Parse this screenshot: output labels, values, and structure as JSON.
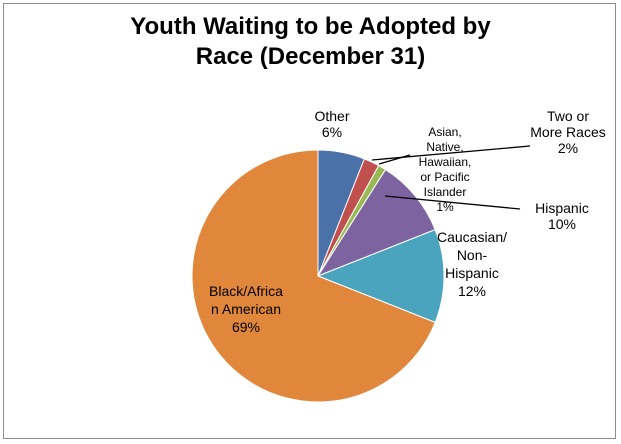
{
  "chart_data": {
    "type": "pie",
    "title_lines": [
      "Youth Waiting to be Adopted by",
      "Race (December 31)"
    ],
    "slices": [
      {
        "label_lines": [
          "Other",
          "6%"
        ],
        "value": 6,
        "color": "#4a72a8"
      },
      {
        "label_lines": [
          "Two or",
          "More Races",
          "2%"
        ],
        "value": 2,
        "color": "#c0504d"
      },
      {
        "label_lines": [
          "Asian,",
          "Native,",
          "Hawaiian,",
          "or Pacific",
          "Islander",
          "1%"
        ],
        "value": 1,
        "color": "#98b954"
      },
      {
        "label_lines": [
          "Hispanic",
          "10%"
        ],
        "value": 10,
        "color": "#7e63a1"
      },
      {
        "label_lines": [
          "Caucasian/",
          "Non-",
          "Hispanic",
          "12%"
        ],
        "value": 12,
        "color": "#4aa4bd"
      },
      {
        "label_lines": [
          "Black/Africa",
          "n American",
          "69%"
        ],
        "value": 69,
        "color": "#e0873b"
      }
    ],
    "start_angle_deg": 0,
    "direction": "clockwise"
  }
}
